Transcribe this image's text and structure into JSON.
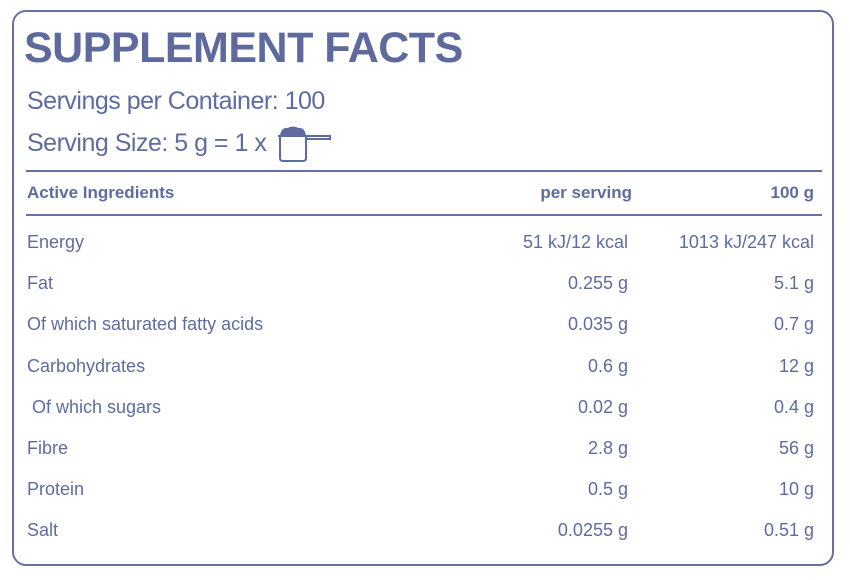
{
  "title": "SUPPLEMENT FACTS",
  "servings_per_container": "Servings per Container: 100",
  "serving_size": "Serving Size: 5 g = 1 x",
  "icons": {
    "serving": "scoop-icon"
  },
  "colors": {
    "primary": "#5f6c9f"
  },
  "table": {
    "headers": [
      "Active Ingredients",
      "per serving",
      "100 g"
    ],
    "rows": [
      [
        "Energy",
        "51 kJ/12 kcal",
        "1013 kJ/247 kcal"
      ],
      [
        "Fat",
        "0.255 g",
        "5.1 g"
      ],
      [
        "Of which saturated fatty acids",
        "0.035 g",
        "0.7 g"
      ],
      [
        "Carbohydrates",
        "0.6 g",
        "12 g"
      ],
      [
        " Of which sugars",
        "0.02 g",
        "0.4 g"
      ],
      [
        "Fibre",
        "2.8 g",
        "56 g"
      ],
      [
        "Protein",
        "0.5 g",
        "10 g"
      ],
      [
        "Salt",
        "0.0255 g",
        "0.51 g"
      ]
    ]
  }
}
